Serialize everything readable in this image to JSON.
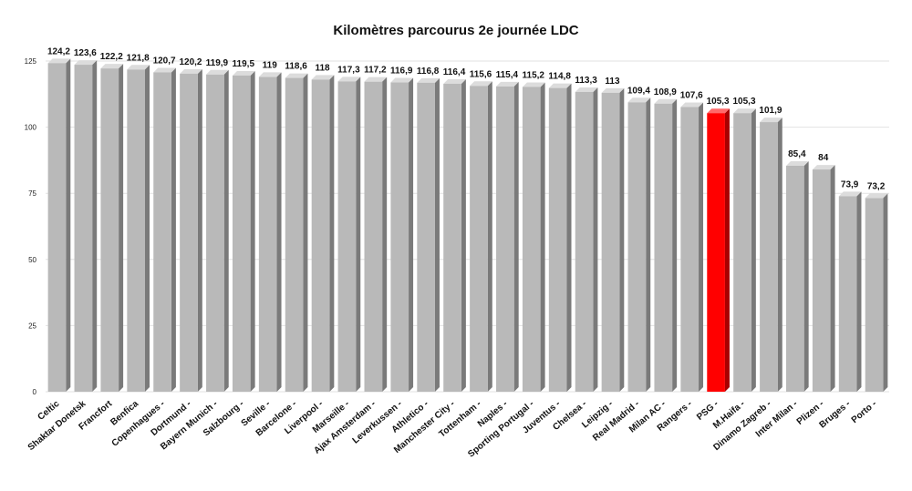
{
  "chart_data": {
    "type": "bar",
    "title": "Kilomètres parcourus 2e journée LDC",
    "xlabel": "",
    "ylabel": "",
    "ylim": [
      0,
      125
    ],
    "yticks": [
      0,
      25,
      50,
      75,
      100,
      125
    ],
    "grid": true,
    "categories": [
      "Celtic",
      "Shaktar Donetsk",
      "Francfort",
      "Benfica",
      "Copenhagues -",
      "Dortmund -",
      "Bayern Munich -",
      "Salzbourg -",
      "Seville -",
      "Barcelone -",
      "Liverpool -",
      "Marseille -",
      "Ajax Amsterdam -",
      "Leverkussen -",
      "Athletico -",
      "Manchester City -",
      "Tottenham -",
      "Naples -",
      "Sporting Portugal -",
      "Juventus -",
      "Chelsea -",
      "Leipzig -",
      "Real Madrid -",
      "Milan AC -",
      "Rangers -",
      "PSG -",
      "M.Haifa -",
      "Dinamo Zagreb -",
      "Inter Milan -",
      "Plizen -",
      "Bruges -",
      "Porto -"
    ],
    "values": [
      124.2,
      123.6,
      122.2,
      121.8,
      120.7,
      120.2,
      119.9,
      119.5,
      119,
      118.6,
      118,
      117.3,
      117.2,
      116.9,
      116.8,
      116.4,
      115.6,
      115.4,
      115.2,
      114.8,
      113.3,
      113,
      109.4,
      108.9,
      107.6,
      105.3,
      105.3,
      101.9,
      85.4,
      84,
      73.9,
      73.2
    ],
    "value_labels": [
      "124,2",
      "123,6",
      "122,2",
      "121,8",
      "120,7",
      "120,2",
      "119,9",
      "119,5",
      "119",
      "118,6",
      "118",
      "117,3",
      "117,2",
      "116,9",
      "116,8",
      "116,4",
      "115,6",
      "115,4",
      "115,2",
      "114,8",
      "113,3",
      "113",
      "109,4",
      "108,9",
      "107,6",
      "105,3",
      "105,3",
      "101,9",
      "85,4",
      "84",
      "73,9",
      "73,2"
    ],
    "highlight_index": 25,
    "colors": {
      "bar": "#b9b9b9",
      "bar_side": "#7a7a7a",
      "bar_top": "#dcdcdc",
      "highlight": "#ff0000",
      "highlight_side": "#a80000",
      "highlight_top": "#ff6a6a",
      "grid": "#e2e2e2"
    }
  }
}
